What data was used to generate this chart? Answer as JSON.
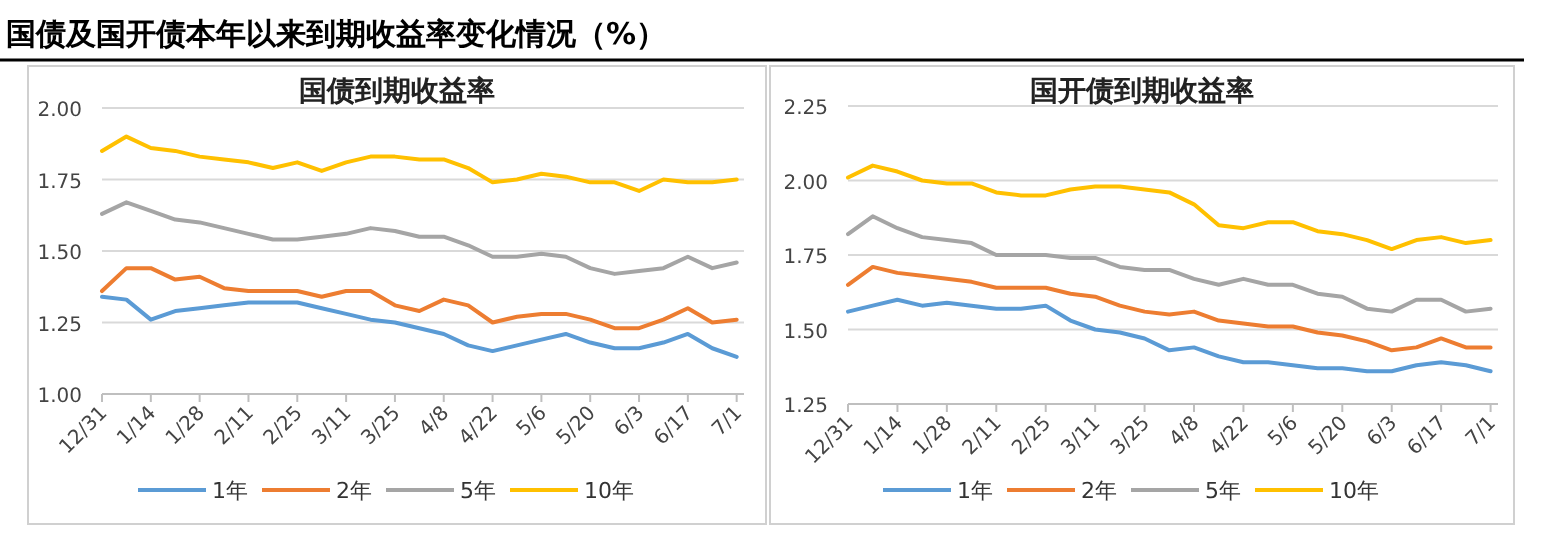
{
  "chart_data": [
    {
      "type": "line",
      "title": "国债到期收益率",
      "annotations": [
        "国债及国开债本年以来到期收益率变化情况（%）"
      ],
      "categories": [
        "12/31",
        null,
        "1/14",
        null,
        "1/28",
        null,
        "2/11",
        null,
        "2/25",
        null,
        "3/11",
        null,
        "3/25",
        null,
        "4/8",
        null,
        "4/22",
        null,
        "5/6",
        null,
        "5/20",
        null,
        "6/3",
        null,
        "6/17",
        null,
        "7/1"
      ],
      "ylim": [
        1.0,
        2.0
      ],
      "yticks": [
        {
          "value": 1.0,
          "label": "1.00"
        },
        {
          "value": 1.25,
          "label": "1.25"
        },
        {
          "value": 1.5,
          "label": "1.50"
        },
        {
          "value": 1.75,
          "label": "1.75"
        },
        {
          "value": 2.0,
          "label": "2.00"
        }
      ],
      "grid": "y",
      "legend": "bottom",
      "series": [
        {
          "name": "1年",
          "color": "#5b9bd5",
          "values": [
            1.34,
            1.33,
            1.26,
            1.29,
            1.3,
            1.31,
            1.32,
            1.32,
            1.32,
            1.3,
            1.28,
            1.26,
            1.25,
            1.23,
            1.21,
            1.17,
            1.15,
            1.17,
            1.19,
            1.21,
            1.18,
            1.16,
            1.16,
            1.18,
            1.21,
            1.16,
            1.13
          ]
        },
        {
          "name": "2年",
          "color": "#ed7d31",
          "values": [
            1.36,
            1.44,
            1.44,
            1.4,
            1.41,
            1.37,
            1.36,
            1.36,
            1.36,
            1.34,
            1.36,
            1.36,
            1.31,
            1.29,
            1.33,
            1.31,
            1.25,
            1.27,
            1.28,
            1.28,
            1.26,
            1.23,
            1.23,
            1.26,
            1.3,
            1.25,
            1.26
          ]
        },
        {
          "name": "5年",
          "color": "#a5a5a5",
          "values": [
            1.63,
            1.67,
            1.64,
            1.61,
            1.6,
            1.58,
            1.56,
            1.54,
            1.54,
            1.55,
            1.56,
            1.58,
            1.57,
            1.55,
            1.55,
            1.52,
            1.48,
            1.48,
            1.49,
            1.48,
            1.44,
            1.42,
            1.43,
            1.44,
            1.48,
            1.44,
            1.46
          ]
        },
        {
          "name": "10年",
          "color": "#ffc000",
          "values": [
            1.85,
            1.9,
            1.86,
            1.85,
            1.83,
            1.82,
            1.81,
            1.79,
            1.81,
            1.78,
            1.81,
            1.83,
            1.83,
            1.82,
            1.82,
            1.79,
            1.74,
            1.75,
            1.77,
            1.76,
            1.74,
            1.74,
            1.71,
            1.75,
            1.74,
            1.74,
            1.75
          ]
        }
      ]
    },
    {
      "type": "line",
      "title": "国开债到期收益率",
      "categories": [
        "12/31",
        null,
        "1/14",
        null,
        "1/28",
        null,
        "2/11",
        null,
        "2/25",
        null,
        "3/11",
        null,
        "3/25",
        null,
        "4/8",
        null,
        "4/22",
        null,
        "5/6",
        null,
        "5/20",
        null,
        "6/3",
        null,
        "6/17",
        null,
        "7/1"
      ],
      "ylim": [
        1.25,
        2.25
      ],
      "yticks": [
        {
          "value": 1.25,
          "label": "1.25"
        },
        {
          "value": 1.5,
          "label": "1.50"
        },
        {
          "value": 1.75,
          "label": "1.75"
        },
        {
          "value": 2.0,
          "label": "2.00"
        },
        {
          "value": 2.25,
          "label": "2.25"
        }
      ],
      "grid": "y",
      "legend": "bottom",
      "series": [
        {
          "name": "1年",
          "color": "#5b9bd5",
          "values": [
            1.56,
            1.58,
            1.6,
            1.58,
            1.59,
            1.58,
            1.57,
            1.57,
            1.58,
            1.53,
            1.5,
            1.49,
            1.47,
            1.43,
            1.44,
            1.41,
            1.39,
            1.39,
            1.38,
            1.37,
            1.37,
            1.36,
            1.36,
            1.38,
            1.39,
            1.38,
            1.36
          ]
        },
        {
          "name": "2年",
          "color": "#ed7d31",
          "values": [
            1.65,
            1.71,
            1.69,
            1.68,
            1.67,
            1.66,
            1.64,
            1.64,
            1.64,
            1.62,
            1.61,
            1.58,
            1.56,
            1.55,
            1.56,
            1.53,
            1.52,
            1.51,
            1.51,
            1.49,
            1.48,
            1.46,
            1.43,
            1.44,
            1.47,
            1.44,
            1.44
          ]
        },
        {
          "name": "5年",
          "color": "#a5a5a5",
          "values": [
            1.82,
            1.88,
            1.84,
            1.81,
            1.8,
            1.79,
            1.75,
            1.75,
            1.75,
            1.74,
            1.74,
            1.71,
            1.7,
            1.7,
            1.67,
            1.65,
            1.67,
            1.65,
            1.65,
            1.62,
            1.61,
            1.57,
            1.56,
            1.6,
            1.6,
            1.56,
            1.57
          ]
        },
        {
          "name": "10年",
          "color": "#ffc000",
          "values": [
            2.01,
            2.05,
            2.03,
            2.0,
            1.99,
            1.99,
            1.96,
            1.95,
            1.95,
            1.97,
            1.98,
            1.98,
            1.97,
            1.96,
            1.92,
            1.85,
            1.84,
            1.86,
            1.86,
            1.83,
            1.82,
            1.8,
            1.77,
            1.8,
            1.81,
            1.79,
            1.8
          ]
        }
      ]
    }
  ]
}
